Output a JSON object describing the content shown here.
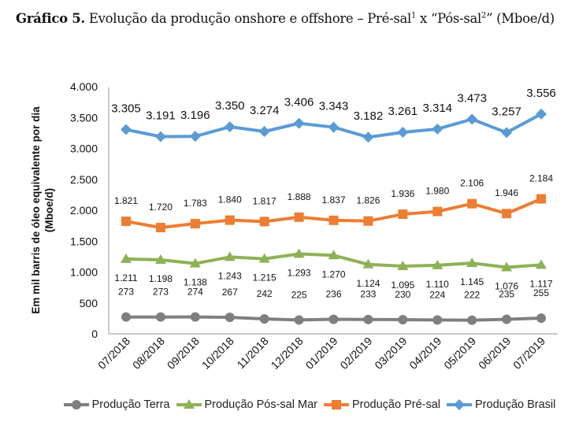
{
  "title": {
    "bold": "Gráfico 5.",
    "text_a": " Evolução da produção onshore e offshore – Pré-sal",
    "sup1": "1",
    "text_b": " x “Pós-sal",
    "sup2": "2",
    "text_c": "” (Mboe/d)"
  },
  "chart_data": {
    "type": "line",
    "title": "Gráfico 5. Evolução da produção onshore e offshore – Pré-sal¹ x “Pós-sal²” (Mboe/d)",
    "xlabel": "",
    "ylabel_line1": "Em mil barris de óleo equivalente por dia",
    "ylabel_line2": "(Mboe/d)",
    "ylim": [
      0,
      4000
    ],
    "yticks": [
      0,
      500,
      1000,
      1500,
      2000,
      2500,
      3000,
      3500,
      4000
    ],
    "ytick_labels": [
      "0",
      "500",
      "1.000",
      "1.500",
      "2.000",
      "2.500",
      "3.000",
      "3.500",
      "4.000"
    ],
    "grid": false,
    "legend_position": "bottom",
    "categories": [
      "07/2018",
      "08/2018",
      "09/2018",
      "10/2018",
      "11/2018",
      "12/2018",
      "01/2019",
      "02/2019",
      "03/2019",
      "04/2019",
      "05/2019",
      "06/2019",
      "07/2019"
    ],
    "series": [
      {
        "name": "Produção Terra",
        "color": "#7f7f7f",
        "marker": "circle",
        "label_position": "above",
        "values": [
          273,
          273,
          274,
          267,
          242,
          225,
          236,
          233,
          230,
          224,
          222,
          235,
          255
        ],
        "labels": [
          "273",
          "273",
          "274",
          "267",
          "242",
          "225",
          "236",
          "233",
          "230",
          "224",
          "222",
          "235",
          "255"
        ]
      },
      {
        "name": "Produção Pós-sal Mar",
        "color": "#8db255",
        "marker": "triangle",
        "label_position": "below",
        "values": [
          1211,
          1198,
          1138,
          1243,
          1215,
          1293,
          1270,
          1124,
          1095,
          1110,
          1145,
          1076,
          1117
        ],
        "labels": [
          "1.211",
          "1.198",
          "1.138",
          "1.243",
          "1.215",
          "1.293",
          "1.270",
          "1.124",
          "1.095",
          "1.110",
          "1.145",
          "1.076",
          "1.117"
        ]
      },
      {
        "name": "Produção Pré-sal",
        "color": "#ed7d31",
        "marker": "square",
        "label_position": "above",
        "values": [
          1821,
          1720,
          1783,
          1840,
          1817,
          1888,
          1837,
          1826,
          1936,
          1980,
          2106,
          1946,
          2184
        ],
        "labels": [
          "1.821",
          "1.720",
          "1.783",
          "1.840",
          "1.817",
          "1.888",
          "1.837",
          "1.826",
          "1.936",
          "1.980",
          "2.106",
          "1.946",
          "2.184"
        ]
      },
      {
        "name": "Produção Brasil",
        "color": "#5b9bd5",
        "marker": "diamond",
        "label_position": "above",
        "values": [
          3305,
          3191,
          3196,
          3350,
          3274,
          3406,
          3343,
          3182,
          3261,
          3314,
          3473,
          3257,
          3556
        ],
        "labels": [
          "3.305",
          "3.191",
          "3.196",
          "3.350",
          "3.274",
          "3.406",
          "3.343",
          "3.182",
          "3.261",
          "3.314",
          "3.473",
          "3.257",
          "3.556"
        ]
      }
    ]
  }
}
